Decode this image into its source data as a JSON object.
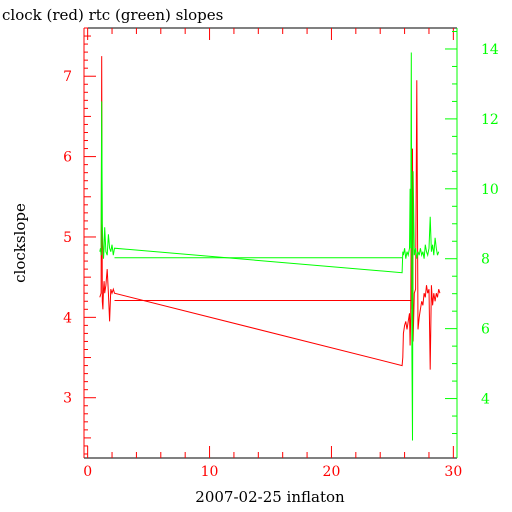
{
  "chart_data": {
    "type": "line",
    "title": "clock (red) rtc (green) slopes",
    "xlabel": "2007-02-25 inflaton",
    "ylabel_left": "clockslope",
    "ylabel_right": "",
    "xlim": [
      -0.3,
      30.3
    ],
    "ylim_left": [
      2.25,
      7.6
    ],
    "ylim_right": [
      2.3,
      14.6
    ],
    "x_ticks": [
      0,
      10,
      20,
      30
    ],
    "y_left_ticks": [
      3,
      4,
      5,
      6,
      7
    ],
    "y_right_ticks": [
      4,
      6,
      8,
      10,
      12,
      14
    ],
    "grid": false,
    "colors": {
      "clock": "#ff0000",
      "rtc": "#00ff00",
      "axes": "#000000"
    },
    "series": [
      {
        "axis": "left",
        "color": "#ff0000",
        "x": [
          1.0,
          1.1,
          1.15,
          1.2,
          1.25,
          1.3,
          1.35,
          1.4,
          1.5,
          1.6,
          1.7,
          1.8,
          1.9,
          2.0,
          2.1,
          2.2,
          25.8,
          25.85,
          25.9,
          26.0,
          26.1,
          26.2,
          26.3,
          26.4,
          26.45,
          26.5,
          26.55,
          26.6,
          26.65,
          26.7,
          26.8,
          26.9,
          27.0,
          27.1,
          27.2,
          27.3,
          27.4,
          27.5,
          27.6,
          27.7,
          27.8,
          27.9,
          28.0,
          28.1,
          28.2,
          28.3,
          28.4,
          28.5,
          28.6,
          28.7,
          28.8,
          28.9
        ],
        "y": [
          4.25,
          4.3,
          7.25,
          4.2,
          4.1,
          4.35,
          4.45,
          4.3,
          4.4,
          4.6,
          4.3,
          3.95,
          4.35,
          4.3,
          4.35,
          4.3,
          3.4,
          3.5,
          3.8,
          3.9,
          3.95,
          3.85,
          3.95,
          4.05,
          3.65,
          4.0,
          5.5,
          4.1,
          6.1,
          3.7,
          4.3,
          4.35,
          6.95,
          3.85,
          4.0,
          4.1,
          4.2,
          4.15,
          4.3,
          4.25,
          4.4,
          4.3,
          4.35,
          3.35,
          4.4,
          4.15,
          4.3,
          4.2,
          4.3,
          4.25,
          4.35,
          4.3
        ],
        "name": ""
      },
      {
        "axis": "left",
        "color": "#ff0000",
        "x": [
          2.2,
          26.6
        ],
        "y": [
          4.21,
          4.21
        ],
        "name": ""
      },
      {
        "axis": "right",
        "color": "#00ff00",
        "x": [
          1.0,
          1.05,
          1.1,
          1.15,
          1.2,
          1.25,
          1.3,
          1.35,
          1.4,
          1.5,
          1.6,
          1.7,
          1.8,
          1.9,
          2.0,
          2.1,
          2.2,
          25.8,
          25.85,
          25.9,
          26.0,
          26.1,
          26.2,
          26.3,
          26.4,
          26.45,
          26.5,
          26.55,
          26.6,
          26.65,
          26.7,
          26.8,
          26.9,
          27.0,
          27.1,
          27.2,
          27.3,
          27.4,
          27.5,
          27.6,
          27.7,
          27.8,
          27.9,
          28.0,
          28.1,
          28.2,
          28.3,
          28.4,
          28.5,
          28.6,
          28.7,
          28.8
        ],
        "y": [
          8.2,
          8.3,
          8.1,
          12.5,
          9.0,
          8.4,
          8.0,
          8.3,
          8.9,
          8.2,
          8.1,
          8.7,
          8.3,
          8.2,
          8.4,
          8.1,
          8.3,
          7.6,
          8.2,
          8.1,
          8.3,
          8.0,
          8.2,
          8.1,
          8.3,
          10.0,
          8.3,
          13.9,
          5.3,
          2.8,
          10.5,
          8.1,
          8.3,
          8.0,
          8.2,
          8.1,
          8.3,
          8.1,
          8.2,
          8.0,
          8.4,
          8.2,
          8.1,
          8.3,
          9.2,
          8.2,
          8.4,
          8.1,
          8.6,
          8.3,
          8.1,
          8.2
        ],
        "name": ""
      },
      {
        "axis": "right",
        "color": "#00ff00",
        "x": [
          2.2,
          25.8
        ],
        "y": [
          8.03,
          8.03
        ],
        "name": ""
      }
    ]
  }
}
